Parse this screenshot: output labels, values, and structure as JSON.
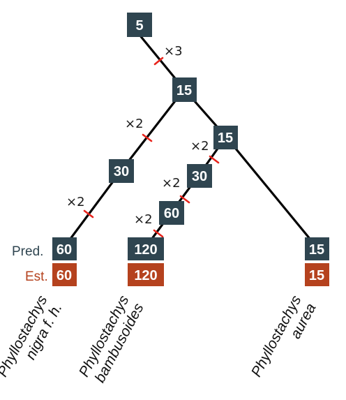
{
  "row_labels": {
    "predicted": "Pred.",
    "estimated": "Est."
  },
  "nodes": {
    "root": "5",
    "clade_upper": "15",
    "clade_right": "15",
    "nigra_internal": "30",
    "bamb_internal_upper": "30",
    "bamb_internal_lower": "60"
  },
  "branch_multipliers": {
    "root_to_upper": "×3",
    "upper_to_nigra": "×2",
    "nigra_lower": "×2",
    "right_to_bamb": "×2",
    "bamb_middle": "×2",
    "bamb_lower": "×2"
  },
  "tips": [
    {
      "predicted": "60",
      "estimated": "60",
      "genus": "Phyllostachys",
      "species": "nigra f. h."
    },
    {
      "predicted": "120",
      "estimated": "120",
      "genus": "Phyllostachys",
      "species": "bambusoides"
    },
    {
      "predicted": "15",
      "estimated": "15",
      "genus": "Phyllostachys",
      "species": "aurea"
    }
  ],
  "colors": {
    "node_fill": "#2f4550",
    "estimate_fill": "#b5421e",
    "tick_color": "#e8231b",
    "branch_color": "#000000"
  }
}
